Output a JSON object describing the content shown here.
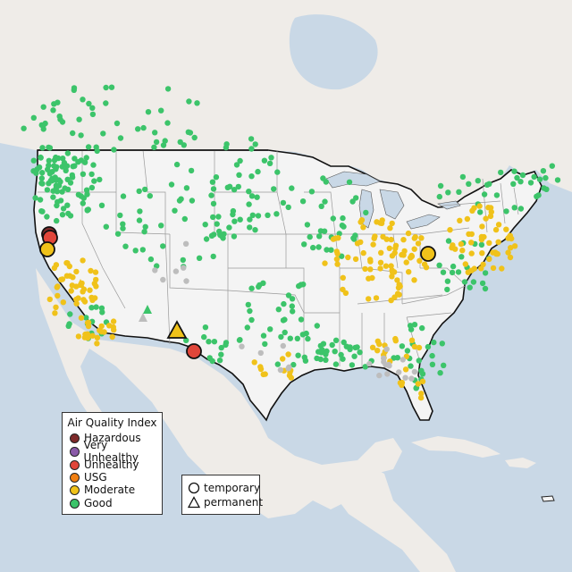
{
  "legend": {
    "title": "Air Quality Index",
    "items": [
      {
        "label": "Hazardous",
        "color": "#7e2a2a"
      },
      {
        "label": "Very Unhealthy",
        "color": "#8a5aa8"
      },
      {
        "label": "Unhealthy",
        "color": "#e0463a"
      },
      {
        "label": "USG",
        "color": "#f07f12"
      },
      {
        "label": "Moderate",
        "color": "#f0c21a"
      },
      {
        "label": "Good",
        "color": "#3cc46a"
      }
    ]
  },
  "type_legend": {
    "temporary_label": "temporary",
    "permanent_label": "permanent"
  },
  "colors": {
    "ocean": "#c9d8e6",
    "land": "#f1efec",
    "us_land": "#f3f3f3",
    "no_data_marker": "#bdbdbd"
  }
}
